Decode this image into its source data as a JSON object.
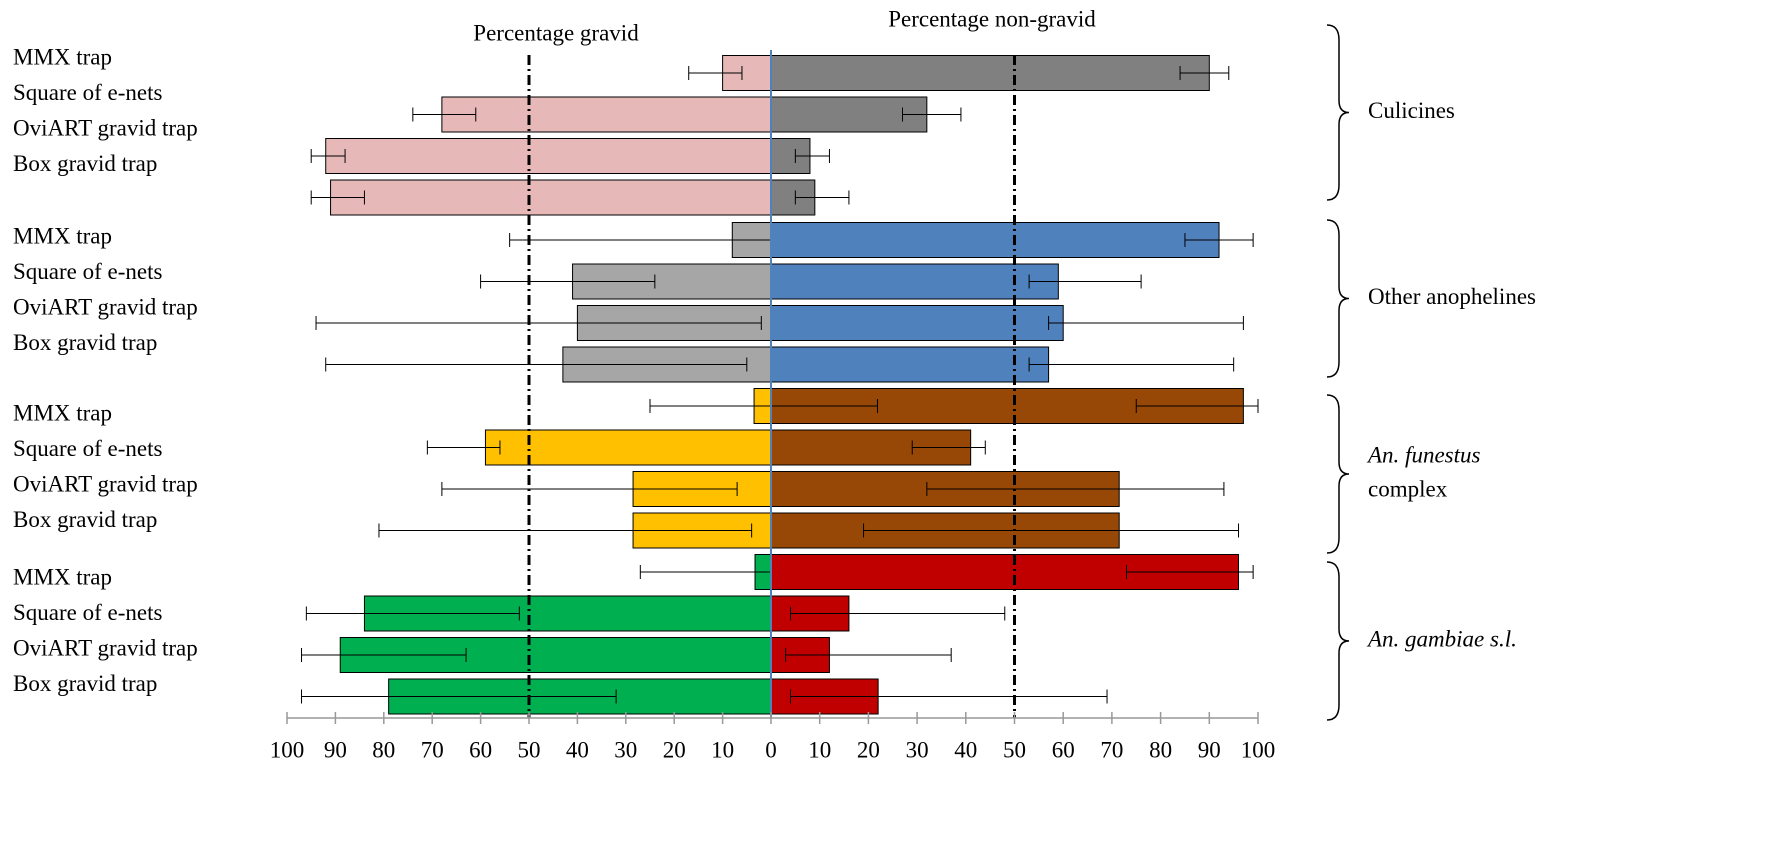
{
  "chart_data": {
    "type": "diverging_bar",
    "left_label": "Percentage gravid",
    "right_label": "Percentage non-gravid",
    "xlim_left": [
      0,
      100
    ],
    "xlim_right": [
      0,
      100
    ],
    "xticks_left": [
      100,
      90,
      80,
      70,
      60,
      50,
      40,
      30,
      20,
      10
    ],
    "xticks_right": [
      0,
      10,
      20,
      30,
      40,
      50,
      60,
      70,
      80,
      90,
      100
    ],
    "reference_lines": [
      50,
      50
    ],
    "groups": [
      {
        "label": [
          "Culicines"
        ],
        "gravid_color": "#e6b8b7",
        "nongravid_color": "#808080",
        "categories": [
          "MMX trap",
          "Square of e-nets",
          "OviART gravid trap",
          "Box gravid trap"
        ],
        "gravid": [
          10,
          68,
          92,
          91
        ],
        "gravid_ci": [
          [
            6,
            17
          ],
          [
            61,
            74
          ],
          [
            88,
            95
          ],
          [
            84,
            95
          ]
        ],
        "nongravid": [
          90,
          32,
          8,
          9
        ],
        "nongravid_ci": [
          [
            84,
            94
          ],
          [
            27,
            39
          ],
          [
            5,
            12
          ],
          [
            5,
            16
          ]
        ]
      },
      {
        "label": [
          "Other anophelines"
        ],
        "gravid_color": "#a6a6a6",
        "nongravid_color": "#4f81bd",
        "categories": [
          "MMX trap",
          "Square of e-nets",
          "OviART gravid trap",
          "Box gravid trap"
        ],
        "gravid": [
          8,
          41,
          40,
          43
        ],
        "gravid_ci": [
          [
            0,
            54
          ],
          [
            24,
            60
          ],
          [
            2,
            94
          ],
          [
            5,
            92
          ]
        ],
        "nongravid": [
          92,
          59,
          60,
          57
        ],
        "nongravid_ci": [
          [
            85,
            99
          ],
          [
            53,
            76
          ],
          [
            57,
            97
          ],
          [
            53,
            95
          ]
        ]
      },
      {
        "label": [
          "An. funestus",
          "complex"
        ],
        "label_italic": [
          true,
          false
        ],
        "gravid_color": "#ffc000",
        "nongravid_color": "#974706",
        "categories": [
          "MMX trap",
          "Square of e-nets",
          "OviART gravid trap",
          "Box gravid trap"
        ],
        "gravid": [
          3.5,
          59,
          28.5,
          28.5
        ],
        "gravid_ci": [
          [
            -22,
            25
          ],
          [
            56,
            71
          ],
          [
            7,
            68
          ],
          [
            4,
            81
          ]
        ],
        "nongravid": [
          97,
          41,
          71.5,
          71.5
        ],
        "nongravid_ci": [
          [
            75,
            100
          ],
          [
            29,
            44
          ],
          [
            32,
            93
          ],
          [
            19,
            96
          ]
        ]
      },
      {
        "label": [
          "An. gambiae s.l."
        ],
        "label_italic": [
          true
        ],
        "gravid_color": "#00b050",
        "nongravid_color": "#c00000",
        "categories": [
          "MMX trap",
          "Square of e-nets",
          "OviART gravid trap",
          "Box gravid trap"
        ],
        "gravid": [
          3.3,
          84,
          89,
          79
        ],
        "gravid_ci": [
          [
            0,
            27
          ],
          [
            52,
            96
          ],
          [
            63,
            97
          ],
          [
            32,
            97
          ]
        ],
        "nongravid": [
          96,
          16,
          12,
          22
        ],
        "nongravid_ci": [
          [
            73,
            99
          ],
          [
            4,
            48
          ],
          [
            3,
            37
          ],
          [
            4,
            69
          ]
        ]
      }
    ]
  }
}
